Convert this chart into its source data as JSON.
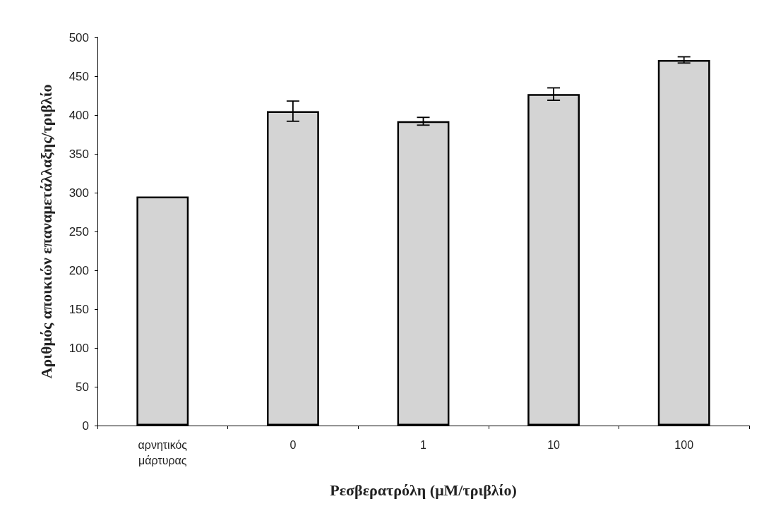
{
  "chart_data": {
    "type": "bar",
    "xlabel": "Ρεσβερατρόλη (μM/τριβλίο)",
    "ylabel": "Αριθμός αποικιών επαναμετάλλαξης/τριβλίο",
    "categories": [
      "αρνητικός\nμάρτυρας",
      "0",
      "1",
      "10",
      "100"
    ],
    "values": [
      295,
      405,
      392,
      427,
      471
    ],
    "errors": [
      null,
      13,
      5,
      8,
      4
    ],
    "color": "#d4d4d4",
    "ylim": [
      0,
      500
    ],
    "yticks": [
      0,
      50,
      100,
      150,
      200,
      250,
      300,
      350,
      400,
      450,
      500
    ],
    "grid": false
  }
}
